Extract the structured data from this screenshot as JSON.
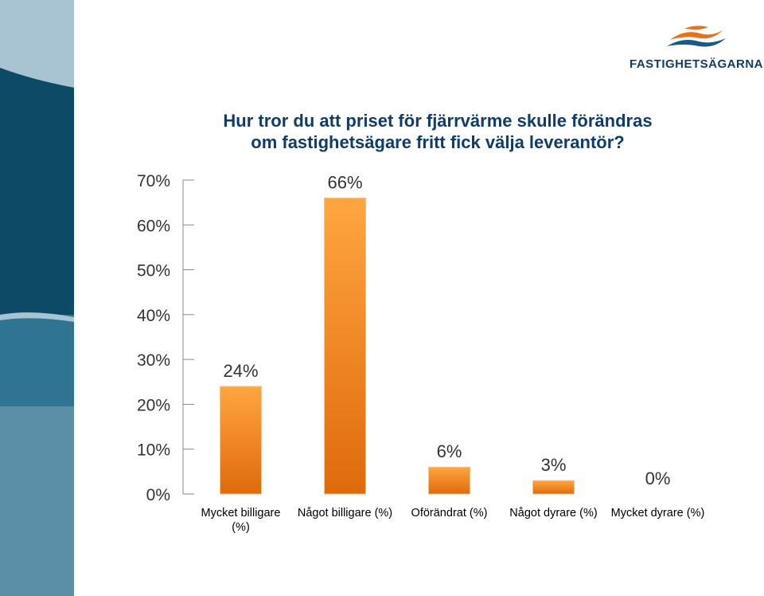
{
  "colors": {
    "title": "#0f3c68",
    "sidebar_dark": "#0d4a66",
    "sidebar_mid": "#2f7593",
    "sidebar_light": "#5b8fa7",
    "sidebar_pale": "#a8c3d1",
    "bar_top": "#ffa640",
    "bar_bottom": "#e06a0a",
    "axis": "#8a8a8a",
    "logo_wave_orange": "#e8721c",
    "logo_wave_blue": "#1b5a86"
  },
  "logo": {
    "text": "FASTIGHETSÄGARNA",
    "icon": "waves-logo-icon"
  },
  "chart_data": {
    "type": "bar",
    "title_lines": [
      "Hur tror du att priset för fjärrvärme skulle förändras",
      "om fastighetsägare fritt fick välja leverantör?"
    ],
    "categories": [
      [
        "Mycket billigare",
        "(%)"
      ],
      [
        "Något billigare (%)"
      ],
      [
        "Oförändrat (%)"
      ],
      [
        "Något dyrare (%)"
      ],
      [
        "Mycket dyrare (%)"
      ]
    ],
    "values": [
      24,
      66,
      6,
      3,
      0
    ],
    "data_labels": [
      "24%",
      "66%",
      "6%",
      "3%",
      "0%"
    ],
    "ylim": [
      0,
      70
    ],
    "yticks": [
      0,
      10,
      20,
      30,
      40,
      50,
      60,
      70
    ],
    "ytick_labels": [
      "0%",
      "10%",
      "20%",
      "30%",
      "40%",
      "50%",
      "60%",
      "70%"
    ],
    "grid": false,
    "legend": "none"
  }
}
